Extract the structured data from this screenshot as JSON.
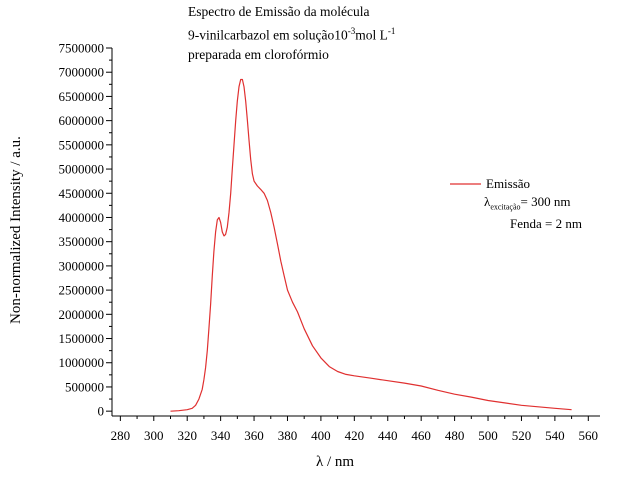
{
  "chart_data": {
    "type": "line",
    "title_lines": [
      "Espectro de Emissão da molécula",
      "9-vinilcarbazol em solução10",
      "-3",
      "mol L",
      "-1",
      "preparada em clorofórmio"
    ],
    "xlabel_symbol": "λ",
    "xlabel_unit": " / nm",
    "ylabel": "Non-normalized Intensity / a.u.",
    "xlim": [
      275,
      567
    ],
    "ylim": [
      -100000,
      7500000
    ],
    "x_ticks": [
      280,
      300,
      320,
      340,
      360,
      380,
      400,
      420,
      440,
      460,
      480,
      500,
      520,
      540,
      560
    ],
    "y_ticks": [
      0,
      500000,
      1000000,
      1500000,
      2000000,
      2500000,
      3000000,
      3500000,
      4000000,
      4500000,
      5000000,
      5500000,
      6000000,
      6500000,
      7000000,
      7500000
    ],
    "line_color": "#e03030",
    "grid": false,
    "legend": {
      "placement": "top-right",
      "series_name": "Emissão",
      "lambda": "λ",
      "lambda_sub": "excitação",
      "lambda_value": "= 300 nm",
      "fenda": "Fenda = 2 nm"
    },
    "series": [
      {
        "name": "Emissão",
        "x": [
          310,
          315,
          320,
          323,
          325,
          327,
          329,
          330,
          331,
          332,
          333,
          334,
          335,
          336,
          337,
          338,
          339,
          340,
          341,
          342,
          343,
          344,
          345,
          346,
          347,
          348,
          349,
          350,
          351,
          352,
          353,
          354,
          355,
          356,
          357,
          358,
          359,
          360,
          362,
          364,
          366,
          368,
          370,
          372,
          374,
          376,
          378,
          380,
          383,
          386,
          390,
          395,
          400,
          405,
          410,
          415,
          420,
          430,
          440,
          450,
          460,
          470,
          480,
          490,
          500,
          510,
          520,
          530,
          540,
          550
        ],
        "y": [
          0,
          10000,
          30000,
          60000,
          120000,
          250000,
          450000,
          650000,
          900000,
          1250000,
          1700000,
          2200000,
          2800000,
          3300000,
          3700000,
          3950000,
          4000000,
          3900000,
          3700000,
          3620000,
          3650000,
          3800000,
          4100000,
          4500000,
          5000000,
          5500000,
          6000000,
          6400000,
          6700000,
          6850000,
          6850000,
          6700000,
          6400000,
          6000000,
          5600000,
          5200000,
          4900000,
          4750000,
          4650000,
          4580000,
          4500000,
          4350000,
          4100000,
          3800000,
          3450000,
          3100000,
          2800000,
          2500000,
          2250000,
          2050000,
          1700000,
          1350000,
          1100000,
          920000,
          820000,
          760000,
          730000,
          680000,
          630000,
          580000,
          520000,
          430000,
          350000,
          290000,
          220000,
          170000,
          120000,
          90000,
          60000,
          30000
        ]
      }
    ]
  }
}
